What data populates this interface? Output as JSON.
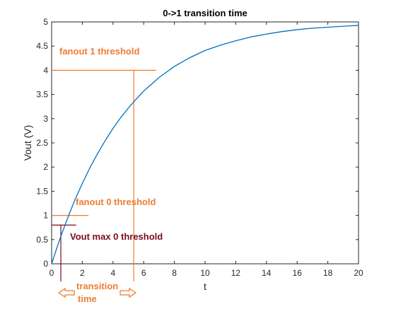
{
  "chart_data": {
    "type": "line",
    "title": "0->1 transition time",
    "xlabel": "t",
    "ylabel": "Vout (V)",
    "xlim": [
      0,
      20
    ],
    "ylim": [
      0,
      5
    ],
    "xticks": [
      "0",
      "2",
      "4",
      "6",
      "8",
      "10",
      "12",
      "14",
      "16",
      "18",
      "20"
    ],
    "yticks": [
      "0",
      "0.5",
      "1",
      "1.5",
      "2",
      "2.5",
      "3",
      "3.5",
      "4",
      "4.5",
      "5"
    ],
    "grid": false,
    "series": [
      {
        "color": "#0072bd",
        "x": [
          0,
          0.5,
          1,
          1.5,
          2,
          2.5,
          3,
          3.5,
          4,
          4.5,
          5,
          5.5,
          6,
          7,
          8,
          9,
          10,
          11,
          12,
          13,
          14,
          15,
          16,
          17,
          18,
          19,
          20
        ],
        "y": [
          0,
          0.48,
          0.91,
          1.31,
          1.66,
          1.99,
          2.28,
          2.55,
          2.8,
          3.02,
          3.22,
          3.4,
          3.57,
          3.85,
          4.08,
          4.26,
          4.41,
          4.52,
          4.61,
          4.69,
          4.75,
          4.8,
          4.84,
          4.87,
          4.89,
          4.91,
          4.93
        ]
      }
    ],
    "annotations": [
      {
        "text": "fanout 1 threshold",
        "color": "#ed7d31"
      },
      {
        "text": "fanout 0 threshold",
        "color": "#ed7d31"
      },
      {
        "text": "Vout max 0 threshold",
        "color": "#7b0c1e"
      },
      {
        "text": "transition",
        "color": "#ed7d31"
      },
      {
        "text": "time",
        "color": "#ed7d31"
      }
    ],
    "reference_lines": {
      "fanout1_level": 4,
      "fanout1_time": 5.35,
      "fanout0_level": 1,
      "vmax0_level": 0.8,
      "vmax0_time": 0.6,
      "line_color": "#ed7d31",
      "vmax0_color": "#7b0c1e"
    }
  }
}
